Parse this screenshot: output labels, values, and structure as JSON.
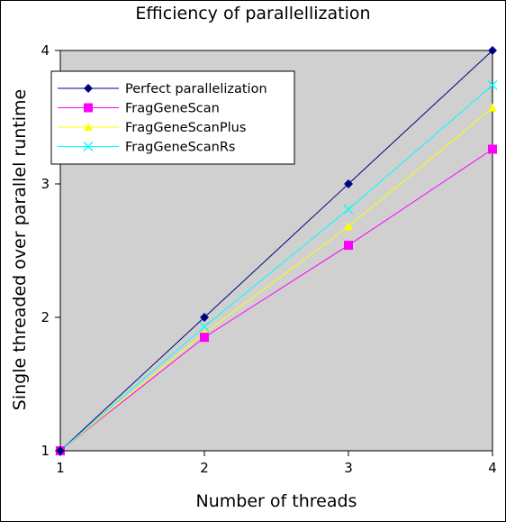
{
  "chart_data": {
    "type": "line",
    "title": "Efficiency of parallellization",
    "xlabel": "Number of threads",
    "ylabel": "Single threaded over parallel runtime",
    "x": [
      1,
      2,
      3,
      4
    ],
    "xlim": [
      1,
      4
    ],
    "ylim": [
      1,
      4
    ],
    "xticks": [
      "1",
      "2",
      "3",
      "4"
    ],
    "yticks": [
      "1",
      "2",
      "3",
      "4"
    ],
    "grid": false,
    "plot_background": "#d0d0d0",
    "legend_position": "top-left",
    "series": [
      {
        "name": "Perfect parallelization",
        "values": [
          1.0,
          2.0,
          3.0,
          4.0
        ],
        "color": "#000080",
        "marker": "diamond"
      },
      {
        "name": "FragGeneScan",
        "values": [
          1.0,
          1.85,
          2.54,
          3.26
        ],
        "color": "#ff00ff",
        "marker": "square"
      },
      {
        "name": "FragGeneScanPlus",
        "values": [
          1.0,
          1.88,
          2.68,
          3.57
        ],
        "color": "#ffff00",
        "marker": "triangle"
      },
      {
        "name": "FragGeneScanRs",
        "values": [
          1.0,
          1.93,
          2.81,
          3.74
        ],
        "color": "#00ffff",
        "marker": "x"
      }
    ]
  }
}
